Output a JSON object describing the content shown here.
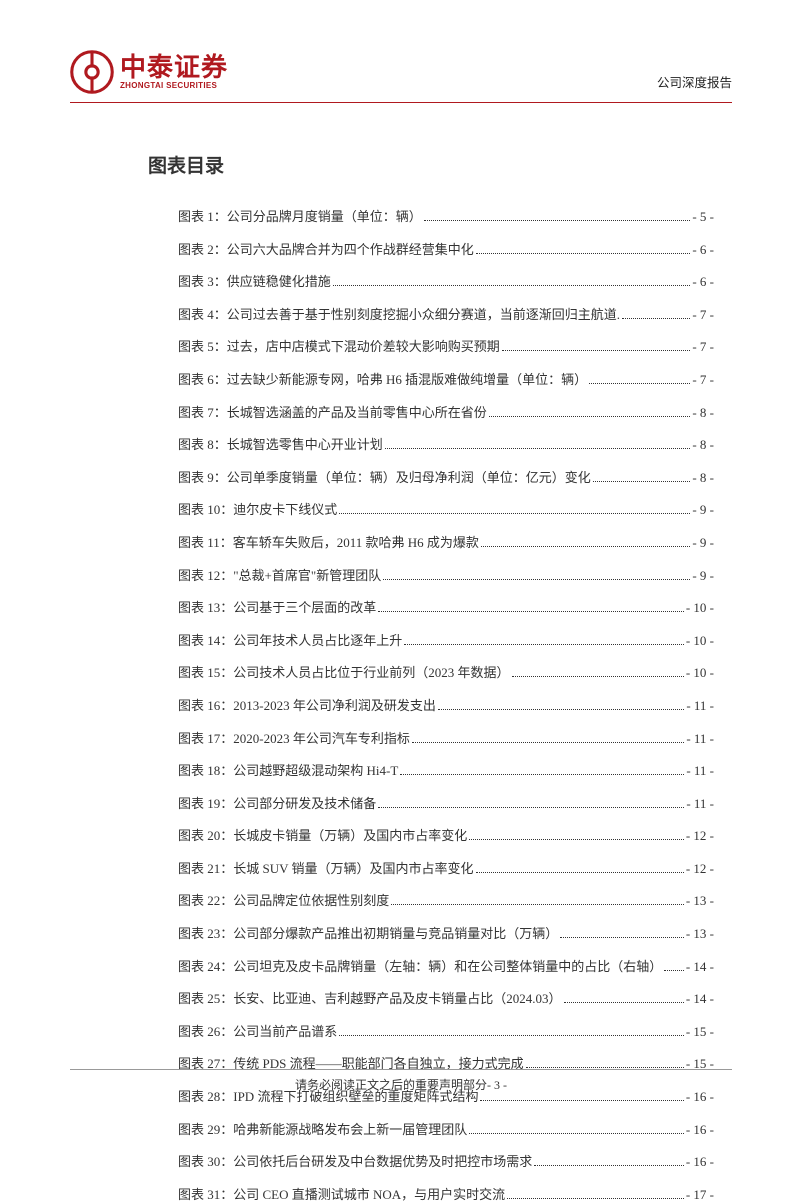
{
  "header": {
    "logo_cn": "中泰证券",
    "logo_en": "ZHONGTAI SECURITIES",
    "report_type": "公司深度报告",
    "logo_color": "#b0191f",
    "divider_color": "#b0191f"
  },
  "section_title": "图表目录",
  "toc": {
    "font_size": 13,
    "text_color": "#333333",
    "entries": [
      {
        "label": "图表 1：公司分品牌月度销量（单位：辆）",
        "page": "- 5 -"
      },
      {
        "label": "图表 2：公司六大品牌合并为四个作战群经营集中化",
        "page": "- 6 -"
      },
      {
        "label": "图表 3：供应链稳健化措施",
        "page": "- 6 -"
      },
      {
        "label": "图表 4：公司过去善于基于性别刻度挖掘小众细分赛道，当前逐渐回归主航道.",
        "page": "- 7 -"
      },
      {
        "label": "图表 5：过去，店中店模式下混动价差较大影响购买预期",
        "page": "- 7 -"
      },
      {
        "label": "图表 6：过去缺少新能源专网，哈弗 H6 插混版难做纯增量（单位：辆）",
        "page": "- 7 -"
      },
      {
        "label": "图表 7：长城智选涵盖的产品及当前零售中心所在省份",
        "page": "- 8 -"
      },
      {
        "label": "图表 8：长城智选零售中心开业计划",
        "page": "- 8 -"
      },
      {
        "label": "图表 9：公司单季度销量（单位：辆）及归母净利润（单位：亿元）变化",
        "page": "- 8 -"
      },
      {
        "label": "图表 10：迪尔皮卡下线仪式",
        "page": "- 9 -"
      },
      {
        "label": "图表 11：客车轿车失败后，2011 款哈弗 H6 成为爆款",
        "page": "- 9 -"
      },
      {
        "label": "图表 12：\"总裁+首席官\"新管理团队",
        "page": "- 9 -"
      },
      {
        "label": "图表 13：公司基于三个层面的改革",
        "page": "- 10 -"
      },
      {
        "label": "图表 14：公司年技术人员占比逐年上升",
        "page": "- 10 -"
      },
      {
        "label": "图表 15：公司技术人员占比位于行业前列（2023 年数据）",
        "page": "- 10 -"
      },
      {
        "label": "图表 16：2013-2023 年公司净利润及研发支出",
        "page": "- 11 -"
      },
      {
        "label": "图表 17：2020-2023 年公司汽车专利指标",
        "page": "- 11 -"
      },
      {
        "label": "图表 18：公司越野超级混动架构 Hi4-T",
        "page": "- 11 -"
      },
      {
        "label": "图表 19：公司部分研发及技术储备",
        "page": "- 11 -"
      },
      {
        "label": "图表 20：长城皮卡销量（万辆）及国内市占率变化",
        "page": "- 12 -"
      },
      {
        "label": "图表 21：长城 SUV 销量（万辆）及国内市占率变化",
        "page": "- 12 -"
      },
      {
        "label": "图表 22：公司品牌定位依据性别刻度",
        "page": "- 13 -"
      },
      {
        "label": "图表 23：公司部分爆款产品推出初期销量与竞品销量对比（万辆）",
        "page": "- 13 -"
      },
      {
        "label": "图表 24：公司坦克及皮卡品牌销量（左轴：辆）和在公司整体销量中的占比（右轴）",
        "page": "- 14 -"
      },
      {
        "label": "图表 25：长安、比亚迪、吉利越野产品及皮卡销量占比（2024.03）",
        "page": "- 14 -"
      },
      {
        "label": "图表 26：公司当前产品谱系",
        "page": "- 15 -"
      },
      {
        "label": "图表 27：传统 PDS 流程——职能部门各自独立，接力式完成",
        "page": "- 15 -"
      },
      {
        "label": "图表 28：IPD 流程下打破组织壁垒的重度矩阵式结构",
        "page": "- 16 -"
      },
      {
        "label": "图表 29：哈弗新能源战略发布会上新一届管理团队",
        "page": "- 16 -"
      },
      {
        "label": "图表 30：公司依托后台研发及中台数据优势及时把控市场需求",
        "page": "- 16 -"
      },
      {
        "label": "图表 31：公司 CEO 直播测试城市 NOA，与用户实时交流",
        "page": "- 17 -"
      }
    ]
  },
  "footer": {
    "text": "请务必阅读正文之后的重要声明部分- 3 -",
    "line_color": "#999999"
  }
}
